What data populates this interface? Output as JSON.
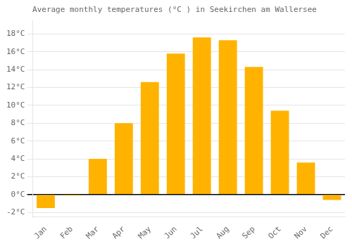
{
  "chart_data": {
    "type": "bar",
    "title": "Average monthly temperatures (°C ) in Seekirchen am Wallersee",
    "categories": [
      "Jan",
      "Feb",
      "Mar",
      "Apr",
      "May",
      "Jun",
      "Jul",
      "Aug",
      "Sep",
      "Oct",
      "Nov",
      "Dec"
    ],
    "values": [
      -1.5,
      -0.1,
      4.0,
      8.0,
      12.6,
      15.8,
      17.6,
      17.3,
      14.3,
      9.4,
      3.6,
      -0.6
    ],
    "color": "#FFB300",
    "ylim": [
      -2.5,
      19.5
    ],
    "yticks": [
      {
        "value": -2,
        "label": "-2°C"
      },
      {
        "value": 0,
        "label": "0°C"
      },
      {
        "value": 2,
        "label": "2°C"
      },
      {
        "value": 4,
        "label": "4°C"
      },
      {
        "value": 6,
        "label": "6°C"
      },
      {
        "value": 8,
        "label": "8°C"
      },
      {
        "value": 10,
        "label": "10°C"
      },
      {
        "value": 12,
        "label": "12°C"
      },
      {
        "value": 14,
        "label": "14°C"
      },
      {
        "value": 16,
        "label": "16°C"
      },
      {
        "value": 18,
        "label": "18°C"
      }
    ],
    "grid": true
  }
}
